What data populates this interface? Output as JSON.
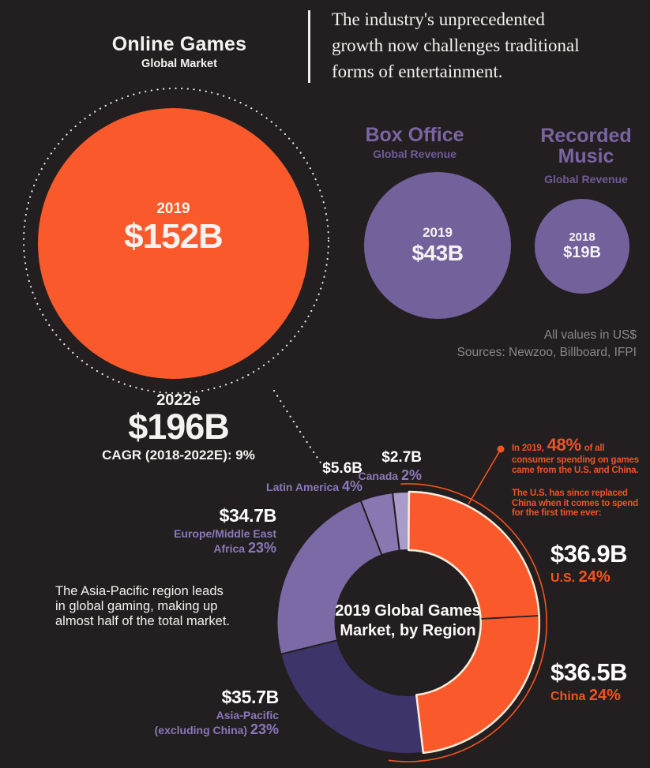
{
  "page": {
    "background": "#231f20",
    "accent_orange": "#fa5a2b",
    "accent_purple": "#7c6aa6",
    "cream_outline": "#f7eedd"
  },
  "header": {
    "title": "Online Games",
    "subtitle": "Global Market",
    "quote_line1": "The industry's unprecedented",
    "quote_line2": "growth now challenges traditional",
    "quote_line3": "forms of entertainment."
  },
  "sources": {
    "line1": "All values in US$",
    "line2": "Sources: Newzoo, Billboard, IFPI"
  },
  "aside": {
    "line1": "The Asia-Pacific region leads",
    "line2": "in global gaming, making up",
    "line3": "almost half of the total market."
  },
  "annotation": {
    "intro_prefix": "In 2019,",
    "highlight": "48%",
    "intro_suffix": "of all",
    "line2": "consumer spending on games",
    "line3": "came from the U.S. and China.",
    "para2_line1": "The U.S. has since replaced",
    "para2_line2": "China when it comes to spend",
    "para2_line3": "for the first time ever:"
  },
  "chart_data": [
    {
      "type": "bubble",
      "title": "Global market size comparison: online games vs. box office vs. recorded music",
      "unit": "US$ billions",
      "bubbles": [
        {
          "name": "Online Games",
          "subtitle": "Global Market",
          "year": "2019",
          "value": 152,
          "display": "$152B",
          "color": "#fa5a2b"
        },
        {
          "name": "Online Games (projected)",
          "year": "2022e",
          "value": 196,
          "display": "$196B",
          "note": "CAGR (2018-2022E): 9%",
          "style": "dotted-outline"
        },
        {
          "name": "Box Office",
          "subtitle": "Global Revenue",
          "year": "2019",
          "value": 43,
          "display": "$43B",
          "color": "#73619c"
        },
        {
          "name": "Recorded Music",
          "title_line1": "Recorded",
          "title_line2": "Music",
          "subtitle": "Global Revenue",
          "year": "2018",
          "value": 19,
          "display": "$19B",
          "color": "#73619c"
        }
      ]
    },
    {
      "type": "donut",
      "title": "2019 Global Games Market, by Region",
      "title_line1": "2019 Global Games",
      "title_line2": "Market, by Region",
      "start_angle_deg": 0.5,
      "outline_color": "#f7eedd",
      "legend_position": "around",
      "segments": [
        {
          "label": "U.S.",
          "pct": 24,
          "pct_display": "24%",
          "value": "$36.9B",
          "color": "#fa5a2b"
        },
        {
          "label": "China",
          "pct": 24,
          "pct_display": "24%",
          "value": "$36.5B",
          "color": "#fa5a2b"
        },
        {
          "label": "Asia-Pacific (excluding China)",
          "name_line1": "Asia-Pacific",
          "name_line2": "(excluding China)",
          "pct": 23,
          "pct_display": "23%",
          "value": "$35.7B",
          "color": "#3d3569"
        },
        {
          "label": "Europe/Middle East Africa",
          "name_line1": "Europe/Middle East",
          "name_line2": "Africa",
          "pct": 23,
          "pct_display": "23%",
          "value": "$34.7B",
          "color": "#7c6aa6"
        },
        {
          "label": "Latin America",
          "name_line1": "Latin America",
          "pct": 4,
          "pct_display": "4%",
          "value": "$5.6B",
          "color": "#8877b1"
        },
        {
          "label": "Canada",
          "name_line1": "Canada",
          "pct": 2,
          "pct_display": "2%",
          "value": "$2.7B",
          "color": "#a99cca"
        }
      ]
    }
  ]
}
